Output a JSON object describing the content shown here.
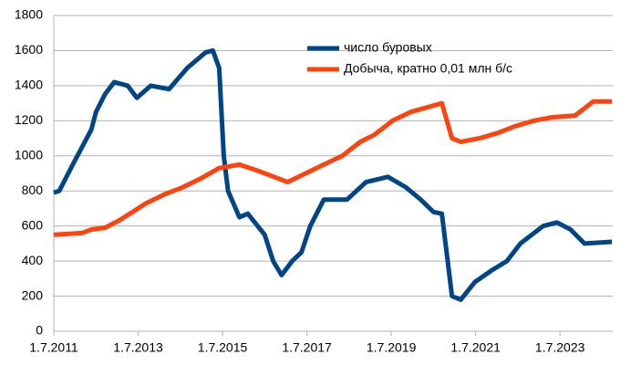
{
  "chart_data": {
    "type": "line",
    "series": [
      {
        "name": "число буровых",
        "color": "#004586",
        "x": [
          2011.5,
          2011.63,
          2011.95,
          2012.17,
          2012.39,
          2012.5,
          2012.71,
          2012.93,
          2013.25,
          2013.47,
          2013.8,
          2014.23,
          2014.66,
          2015.1,
          2015.27,
          2015.42,
          2015.53,
          2015.63,
          2015.9,
          2016.1,
          2016.5,
          2016.7,
          2016.9,
          2017.15,
          2017.37,
          2017.58,
          2017.9,
          2018.45,
          2018.9,
          2019.42,
          2019.85,
          2020.2,
          2020.5,
          2020.7,
          2020.94,
          2021.15,
          2021.48,
          2021.9,
          2022.24,
          2022.56,
          2023.1,
          2023.43,
          2023.75,
          2024.08,
          2024.73
        ],
        "values": [
          790,
          800,
          950,
          1050,
          1150,
          1250,
          1350,
          1420,
          1400,
          1330,
          1400,
          1380,
          1500,
          1590,
          1600,
          1500,
          1000,
          800,
          650,
          670,
          550,
          400,
          320,
          400,
          450,
          600,
          750,
          750,
          850,
          880,
          820,
          750,
          680,
          670,
          200,
          180,
          280,
          350,
          400,
          500,
          600,
          620,
          580,
          500,
          510
        ]
      },
      {
        "name": "Добыча, кратно 0,01 млн б/с",
        "color": "#ff420e",
        "x": [
          2011.5,
          2012.17,
          2012.39,
          2012.71,
          2013.04,
          2013.37,
          2013.69,
          2014.12,
          2014.55,
          2014.98,
          2015.42,
          2015.9,
          2016.28,
          2016.72,
          2017.04,
          2017.47,
          2017.9,
          2018.34,
          2018.77,
          2019.1,
          2019.53,
          2019.96,
          2020.4,
          2020.7,
          2020.94,
          2021.15,
          2021.59,
          2022.02,
          2022.45,
          2022.88,
          2023.32,
          2023.86,
          2024.29,
          2024.73
        ],
        "values": [
          550,
          560,
          580,
          590,
          630,
          680,
          730,
          780,
          820,
          870,
          930,
          950,
          920,
          880,
          850,
          900,
          950,
          1000,
          1080,
          1120,
          1200,
          1250,
          1280,
          1300,
          1100,
          1080,
          1100,
          1130,
          1170,
          1200,
          1220,
          1230,
          1310,
          1310
        ]
      }
    ],
    "xlim": [
      2011.5,
      2024.75
    ],
    "xticks": [
      {
        "value": 2011.5,
        "label": "1.7.2011"
      },
      {
        "value": 2013.5,
        "label": "1.7.2013"
      },
      {
        "value": 2015.5,
        "label": "1.7.2015"
      },
      {
        "value": 2017.5,
        "label": "1.7.2017"
      },
      {
        "value": 2019.5,
        "label": "1.7.2019"
      },
      {
        "value": 2021.5,
        "label": "1.7.2021"
      },
      {
        "value": 2023.5,
        "label": "1.7.2023"
      }
    ],
    "ylim": [
      0,
      1800
    ],
    "yticks": [
      0,
      200,
      400,
      600,
      800,
      1000,
      1200,
      1400,
      1600,
      1800
    ],
    "grid": true,
    "legend": "top"
  }
}
